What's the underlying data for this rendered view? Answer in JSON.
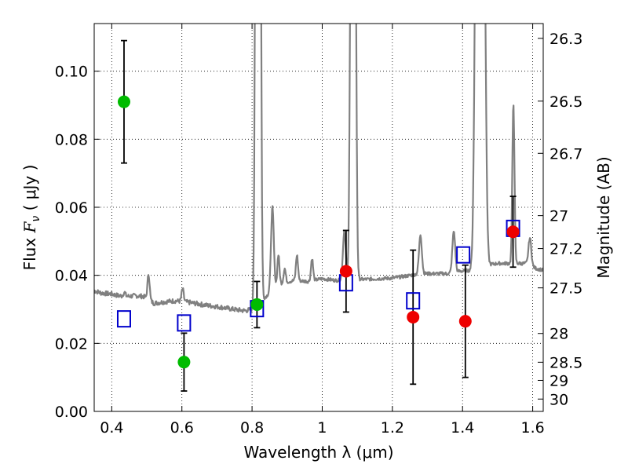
{
  "chart_data": {
    "type": "scatter",
    "xlabel": "Wavelength  λ (μm)",
    "ylabel_left_prefix": "Flux  ",
    "ylabel_left_symbol": "F",
    "ylabel_left_sub": "ν",
    "ylabel_left_suffix": "  ( μJy )",
    "ylabel_right": "Magnitude (AB)",
    "xlim": [
      0.35,
      1.63
    ],
    "ylim": [
      0.0,
      0.114
    ],
    "grid": true,
    "x_ticks": [
      {
        "value": 0.4,
        "label": "0.4"
      },
      {
        "value": 0.6,
        "label": "0.6"
      },
      {
        "value": 0.8,
        "label": "0.8"
      },
      {
        "value": 1.0,
        "label": "1"
      },
      {
        "value": 1.2,
        "label": "1.2"
      },
      {
        "value": 1.4,
        "label": "1.4"
      },
      {
        "value": 1.6,
        "label": "1.6"
      }
    ],
    "y_ticks": [
      {
        "value": 0.0,
        "label": "0.00"
      },
      {
        "value": 0.02,
        "label": "0.02"
      },
      {
        "value": 0.04,
        "label": "0.04"
      },
      {
        "value": 0.06,
        "label": "0.06"
      },
      {
        "value": 0.08,
        "label": "0.08"
      },
      {
        "value": 0.1,
        "label": "0.10"
      }
    ],
    "right_ticks": [
      {
        "mag": 26.3,
        "label": "26.3"
      },
      {
        "mag": 26.5,
        "label": "26.5"
      },
      {
        "mag": 26.7,
        "label": "26.7"
      },
      {
        "mag": 27.0,
        "label": "27"
      },
      {
        "mag": 27.2,
        "label": "27.2"
      },
      {
        "mag": 27.5,
        "label": "27.5"
      },
      {
        "mag": 28.0,
        "label": "28"
      },
      {
        "mag": 28.5,
        "label": "28.5"
      },
      {
        "mag": 29.0,
        "label": "29"
      },
      {
        "mag": 30.0,
        "label": "30"
      }
    ],
    "colors": {
      "spectrum": "#808080",
      "green": "#00bb00",
      "red": "#ee0000",
      "model": "#0000cc",
      "errorbar": "#000000"
    },
    "series": [
      {
        "marker": "filled-circle",
        "color": "green",
        "points": [
          {
            "x": 0.435,
            "y": 0.091,
            "err": 0.018
          },
          {
            "x": 0.606,
            "y": 0.0145,
            "err": 0.0085
          },
          {
            "x": 0.814,
            "y": 0.0314,
            "err": 0.0068
          }
        ]
      },
      {
        "marker": "filled-circle",
        "color": "red",
        "points": [
          {
            "x": 1.068,
            "y": 0.0412,
            "err": 0.012
          },
          {
            "x": 1.259,
            "y": 0.0277,
            "err": 0.0197
          },
          {
            "x": 1.408,
            "y": 0.0265,
            "err": 0.0165
          },
          {
            "x": 1.544,
            "y": 0.0528,
            "err": 0.0104
          }
        ]
      },
      {
        "marker": "open-square",
        "color": "model",
        "points": [
          {
            "x": 0.435,
            "y": 0.0272
          },
          {
            "x": 0.606,
            "y": 0.026
          },
          {
            "x": 0.814,
            "y": 0.0302
          },
          {
            "x": 1.068,
            "y": 0.0378
          },
          {
            "x": 1.259,
            "y": 0.0325
          },
          {
            "x": 1.402,
            "y": 0.046
          },
          {
            "x": 1.544,
            "y": 0.0538
          }
        ]
      }
    ],
    "spectrum": {
      "baseline": [
        [
          0.35,
          0.0355
        ],
        [
          0.37,
          0.0348
        ],
        [
          0.4,
          0.0345
        ],
        [
          0.42,
          0.034
        ],
        [
          0.44,
          0.0338
        ],
        [
          0.47,
          0.034
        ],
        [
          0.49,
          0.0338
        ],
        [
          0.5,
          0.0333
        ],
        [
          0.52,
          0.0318
        ],
        [
          0.55,
          0.0322
        ],
        [
          0.58,
          0.0325
        ],
        [
          0.61,
          0.0322
        ],
        [
          0.64,
          0.0317
        ],
        [
          0.67,
          0.0312
        ],
        [
          0.7,
          0.0308
        ],
        [
          0.73,
          0.0303
        ],
        [
          0.76,
          0.0298
        ],
        [
          0.78,
          0.0296
        ],
        [
          0.8,
          0.03
        ],
        [
          0.84,
          0.0338
        ],
        [
          0.88,
          0.0375
        ],
        [
          0.92,
          0.0385
        ],
        [
          0.96,
          0.0382
        ],
        [
          1.0,
          0.039
        ],
        [
          1.04,
          0.0385
        ],
        [
          1.08,
          0.039
        ],
        [
          1.12,
          0.0388
        ],
        [
          1.16,
          0.039
        ],
        [
          1.2,
          0.0392
        ],
        [
          1.24,
          0.0398
        ],
        [
          1.28,
          0.0405
        ],
        [
          1.32,
          0.0405
        ],
        [
          1.36,
          0.0405
        ],
        [
          1.39,
          0.0412
        ],
        [
          1.43,
          0.0415
        ],
        [
          1.47,
          0.043
        ],
        [
          1.5,
          0.0435
        ],
        [
          1.54,
          0.0435
        ],
        [
          1.58,
          0.0435
        ],
        [
          1.61,
          0.042
        ],
        [
          1.63,
          0.0415
        ]
      ],
      "lines": [
        {
          "x": 0.436,
          "peak": 0.035,
          "w": 0.003
        },
        {
          "x": 0.505,
          "peak": 0.0405,
          "w": 0.003
        },
        {
          "x": 0.602,
          "peak": 0.036,
          "w": 0.003
        },
        {
          "x": 0.812,
          "peak": 0.2,
          "w": 0.0035
        },
        {
          "x": 0.822,
          "peak": 0.2,
          "w": 0.0035
        },
        {
          "x": 0.858,
          "peak": 0.06,
          "w": 0.004
        },
        {
          "x": 0.875,
          "peak": 0.046,
          "w": 0.003
        },
        {
          "x": 0.893,
          "peak": 0.042,
          "w": 0.003
        },
        {
          "x": 0.928,
          "peak": 0.046,
          "w": 0.003
        },
        {
          "x": 0.971,
          "peak": 0.045,
          "w": 0.003
        },
        {
          "x": 1.063,
          "peak": 0.053,
          "w": 0.004
        },
        {
          "x": 1.084,
          "peak": 0.2,
          "w": 0.004
        },
        {
          "x": 1.092,
          "peak": 0.2,
          "w": 0.004
        },
        {
          "x": 1.28,
          "peak": 0.052,
          "w": 0.004
        },
        {
          "x": 1.375,
          "peak": 0.053,
          "w": 0.004
        },
        {
          "x": 1.442,
          "peak": 0.2,
          "w": 0.006
        },
        {
          "x": 1.458,
          "peak": 0.2,
          "w": 0.006
        },
        {
          "x": 1.545,
          "peak": 0.091,
          "w": 0.003
        },
        {
          "x": 1.592,
          "peak": 0.051,
          "w": 0.004
        }
      ]
    }
  }
}
